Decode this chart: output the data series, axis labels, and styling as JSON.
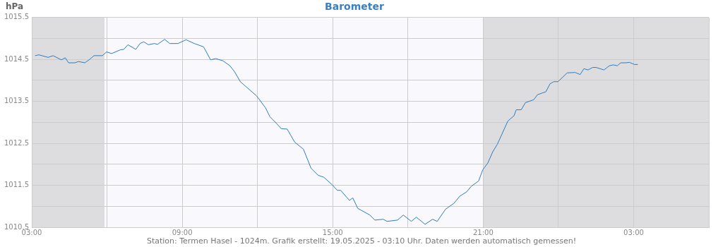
{
  "chart_data": {
    "type": "line",
    "title": "Barometer",
    "ylabel": "hPa",
    "annotations": [
      "Station: Termen Hasel - 1024m. Grafik erstellt: 19.05.2025 - 03:10 Uhr. Daten werden automatisch gemessen!"
    ],
    "x": [
      "2025-05-18T03:08",
      "2025-05-18T03:17",
      "2025-05-18T03:39",
      "2025-05-18T03:51",
      "2025-05-18T04:11",
      "2025-05-18T04:20",
      "2025-05-18T04:28",
      "2025-05-18T04:43",
      "2025-05-18T04:52",
      "2025-05-18T05:07",
      "2025-05-18T05:17",
      "2025-05-18T05:29",
      "2025-05-18T05:49",
      "2025-05-18T05:59",
      "2025-05-18T06:11",
      "2025-05-18T06:32",
      "2025-05-18T06:40",
      "2025-05-18T06:50",
      "2025-05-18T07:09",
      "2025-05-18T07:19",
      "2025-05-18T07:28",
      "2025-05-18T07:39",
      "2025-05-18T07:53",
      "2025-05-18T08:01",
      "2025-05-18T08:18",
      "2025-05-18T08:30",
      "2025-05-18T08:50",
      "2025-05-18T09:09",
      "2025-05-18T09:29",
      "2025-05-18T09:51",
      "2025-05-18T10:08",
      "2025-05-18T10:20",
      "2025-05-18T10:37",
      "2025-05-18T10:54",
      "2025-05-18T11:05",
      "2025-05-18T11:19",
      "2025-05-18T11:58",
      "2025-05-18T12:19",
      "2025-05-18T12:30",
      "2025-05-18T12:44",
      "2025-05-18T12:57",
      "2025-05-18T13:11",
      "2025-05-18T13:29",
      "2025-05-18T13:50",
      "2025-05-18T14:08",
      "2025-05-18T14:25",
      "2025-05-18T14:39",
      "2025-05-18T14:59",
      "2025-05-18T15:11",
      "2025-05-18T15:19",
      "2025-05-18T15:40",
      "2025-05-18T15:48",
      "2025-05-18T16:00",
      "2025-05-18T16:29",
      "2025-05-18T16:41",
      "2025-05-18T17:01",
      "2025-05-18T17:10",
      "2025-05-18T17:35",
      "2025-05-18T17:49",
      "2025-05-18T18:08",
      "2025-05-18T18:20",
      "2025-05-18T18:41",
      "2025-05-18T18:59",
      "2025-05-18T19:10",
      "2025-05-18T19:30",
      "2025-05-18T19:50",
      "2025-05-18T20:04",
      "2025-05-18T20:20",
      "2025-05-18T20:32",
      "2025-05-18T20:49",
      "2025-05-18T20:59",
      "2025-05-18T21:11",
      "2025-05-18T21:23",
      "2025-05-18T21:34",
      "2025-05-18T21:59",
      "2025-05-18T22:14",
      "2025-05-18T22:19",
      "2025-05-18T22:31",
      "2025-05-18T22:41",
      "2025-05-18T23:01",
      "2025-05-18T23:10",
      "2025-05-18T23:30",
      "2025-05-18T23:40",
      "2025-05-18T23:49",
      "2025-05-18T23:59",
      "2025-05-19T00:21",
      "2025-05-19T00:40",
      "2025-05-19T00:52",
      "2025-05-19T01:01",
      "2025-05-19T01:11",
      "2025-05-19T01:22",
      "2025-05-19T01:30",
      "2025-05-19T01:49",
      "2025-05-19T02:02",
      "2025-05-19T02:11",
      "2025-05-19T02:21",
      "2025-05-19T02:29",
      "2025-05-19T02:41",
      "2025-05-19T02:50",
      "2025-05-19T03:02",
      "2025-05-19T03:10"
    ],
    "series": [
      {
        "color": "#2f7bbf",
        "values": [
          1014.59,
          1014.61,
          1014.55,
          1014.59,
          1014.49,
          1014.54,
          1014.42,
          1014.42,
          1014.45,
          1014.42,
          1014.49,
          1014.59,
          1014.59,
          1014.68,
          1014.64,
          1014.73,
          1014.74,
          1014.85,
          1014.74,
          1014.88,
          1014.92,
          1014.85,
          1014.88,
          1014.86,
          1014.98,
          1014.88,
          1014.88,
          1014.97,
          1014.88,
          1014.8,
          1014.49,
          1014.52,
          1014.47,
          1014.35,
          1014.21,
          1013.97,
          1013.63,
          1013.35,
          1013.13,
          1012.99,
          1012.85,
          1012.84,
          1012.53,
          1012.36,
          1011.91,
          1011.74,
          1011.69,
          1011.51,
          1011.38,
          1011.38,
          1011.14,
          1011.2,
          1010.95,
          1010.79,
          1010.67,
          1010.69,
          1010.64,
          1010.67,
          1010.79,
          1010.64,
          1010.74,
          1010.57,
          1010.69,
          1010.64,
          1010.93,
          1011.07,
          1011.24,
          1011.34,
          1011.48,
          1011.6,
          1011.87,
          1012.03,
          1012.3,
          1012.48,
          1013.03,
          1013.16,
          1013.3,
          1013.3,
          1013.47,
          1013.54,
          1013.66,
          1013.73,
          1013.92,
          1013.97,
          1013.97,
          1014.18,
          1014.19,
          1014.14,
          1014.28,
          1014.25,
          1014.31,
          1014.31,
          1014.25,
          1014.35,
          1014.37,
          1014.35,
          1014.42,
          1014.42,
          1014.43,
          1014.38,
          1014.38
        ]
      }
    ],
    "xlim": [
      "2025-05-18T03:00",
      "2025-05-19T06:00"
    ],
    "xticks": [
      {
        "value": "2025-05-18T03:00",
        "label": "03:00"
      },
      {
        "value": "2025-05-18T06:00",
        "label": null
      },
      {
        "value": "2025-05-18T09:00",
        "label": "09:00"
      },
      {
        "value": "2025-05-18T12:00",
        "label": null
      },
      {
        "value": "2025-05-18T15:00",
        "label": "15:00"
      },
      {
        "value": "2025-05-18T18:00",
        "label": null
      },
      {
        "value": "2025-05-18T21:00",
        "label": "21:00"
      },
      {
        "value": "2025-05-19T00:00",
        "label": null
      },
      {
        "value": "2025-05-19T03:00",
        "label": "03:00"
      },
      {
        "value": "2025-05-19T06:00",
        "label": null
      }
    ],
    "ylim": [
      1010.5,
      1015.5
    ],
    "yticks": [
      1010.5,
      {
        "value": 1011,
        "label": null
      },
      1011.5,
      {
        "value": 1012,
        "label": null
      },
      1012.5,
      {
        "value": 1013,
        "label": null
      },
      1013.5,
      {
        "value": 1014,
        "label": null
      },
      1014.5,
      {
        "value": 1015,
        "label": null
      },
      1015.5
    ],
    "bands": [
      {
        "axis": "x",
        "from": "2025-05-18T03:00",
        "to": "2025-05-18T05:54",
        "color": "#dddde0"
      },
      {
        "axis": "x",
        "from": "2025-05-18T21:00",
        "to": "2025-05-19T06:00",
        "color": "#dddde0"
      }
    ],
    "grid": true,
    "legend": false,
    "marker": "none",
    "line_style": "solid"
  }
}
